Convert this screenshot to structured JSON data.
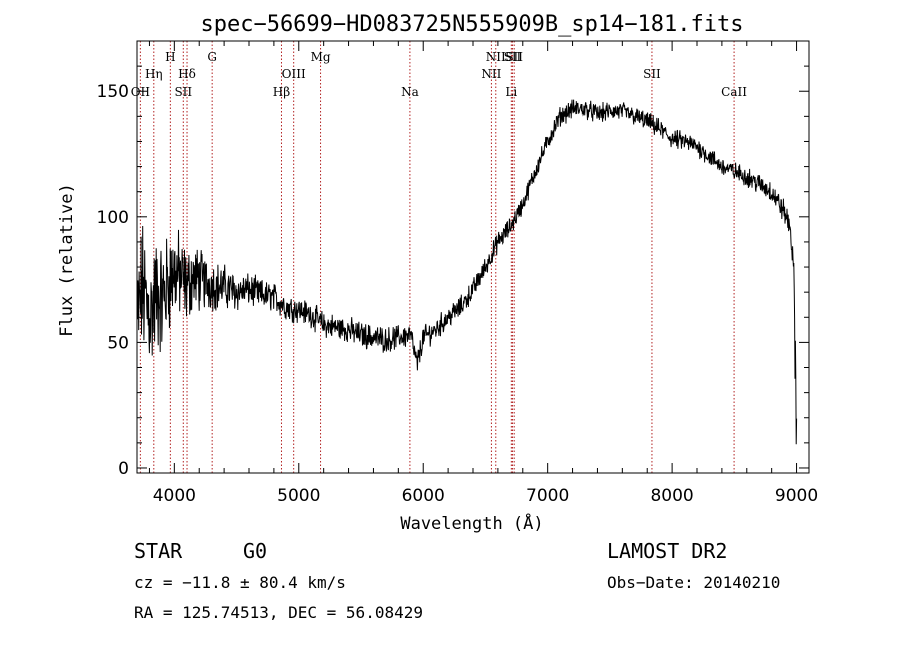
{
  "chart_data": {
    "type": "line",
    "title": "spec−56699−HD083725N555909B_sp14−181.fits",
    "xlabel": "Wavelength (Å)",
    "ylabel": "Flux (relative)",
    "xlim": [
      3700,
      9100
    ],
    "ylim": [
      -2,
      170
    ],
    "x_ticks": [
      4000,
      5000,
      6000,
      7000,
      8000,
      9000
    ],
    "y_ticks": [
      0,
      50,
      100,
      150
    ],
    "grid": false,
    "spectrum_profile": {
      "x": [
        3700,
        3740,
        3780,
        3820,
        3860,
        3900,
        3950,
        4000,
        4050,
        4100,
        4150,
        4200,
        4300,
        4400,
        4500,
        4600,
        4700,
        4800,
        4900,
        5000,
        5100,
        5200,
        5300,
        5400,
        5500,
        5600,
        5700,
        5800,
        5900,
        5950,
        6000,
        6100,
        6200,
        6300,
        6400,
        6500,
        6560,
        6600,
        6700,
        6800,
        6900,
        7000,
        7100,
        7200,
        7300,
        7400,
        7500,
        7600,
        7700,
        7800,
        7900,
        8000,
        8100,
        8200,
        8300,
        8400,
        8500,
        8600,
        8700,
        8800,
        8900,
        8950,
        8980,
        9000
      ],
      "y": [
        55,
        72,
        64,
        62,
        70,
        66,
        74,
        78,
        76,
        72,
        76,
        75,
        73,
        72,
        70,
        71,
        69,
        68,
        64,
        63,
        61,
        57,
        56,
        55,
        53,
        52,
        51,
        52,
        53,
        41,
        52,
        55,
        60,
        64,
        71,
        80,
        86,
        90,
        96,
        105,
        118,
        130,
        140,
        143,
        143,
        141,
        142,
        142,
        140,
        138,
        135,
        131,
        130,
        128,
        124,
        120,
        118,
        116,
        113,
        110,
        102,
        96,
        75,
        15
      ]
    },
    "noise_amplitude_profile": {
      "x": [
        3700,
        3900,
        4100,
        4300,
        4600,
        5000,
        5600,
        6200,
        6800,
        7400,
        8000,
        8600,
        9000
      ],
      "y": [
        22,
        18,
        12,
        8,
        5,
        4,
        4,
        3.5,
        3,
        3,
        3,
        3,
        4
      ]
    },
    "spectral_lines": [
      {
        "label": "OII",
        "wavelength": 3727,
        "row": 3
      },
      {
        "label": "Hη",
        "wavelength": 3835,
        "row": 2
      },
      {
        "label": "H",
        "wavelength": 3968,
        "row": 1
      },
      {
        "label": "SII",
        "wavelength": 4072,
        "row": 3
      },
      {
        "label": "Hδ",
        "wavelength": 4102,
        "row": 2
      },
      {
        "label": "G",
        "wavelength": 4304,
        "row": 1
      },
      {
        "label": "Hβ",
        "wavelength": 4861,
        "row": 3
      },
      {
        "label": "OIII",
        "wavelength": 4959,
        "row": 2
      },
      {
        "label": "Mg",
        "wavelength": 5175,
        "row": 1
      },
      {
        "label": "Na",
        "wavelength": 5893,
        "row": 3
      },
      {
        "label": "NII",
        "wavelength": 6548,
        "row": 2
      },
      {
        "label": "NII",
        "wavelength": 6583,
        "row": 1
      },
      {
        "label": "Li",
        "wavelength": 6708,
        "row": 3
      },
      {
        "label": "SII",
        "wavelength": 6717,
        "row": 1
      },
      {
        "label": "SII",
        "wavelength": 6731,
        "row": 1
      },
      {
        "label": "SII",
        "wavelength": 7838,
        "row": 2
      },
      {
        "label": "CaII",
        "wavelength": 8498,
        "row": 3
      }
    ],
    "colors": {
      "spectrum": "#000000",
      "line_markers": "#b22222",
      "axes": "#000000"
    }
  },
  "footer": {
    "object_class": "STAR",
    "subclass": "G0",
    "survey": "LAMOST DR2",
    "redshift": "cz = −11.8 ± 80.4 km/s",
    "obs_date": "Obs−Date: 20140210",
    "coords": "RA = 125.74513, DEC =  56.08429"
  }
}
